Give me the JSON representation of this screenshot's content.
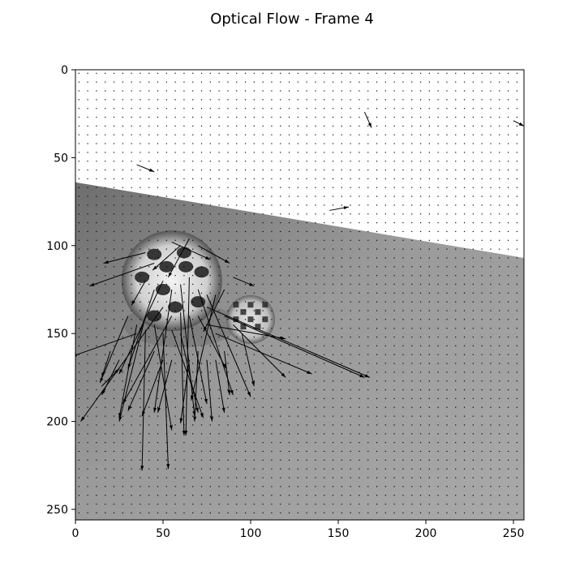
{
  "chart_data": {
    "type": "quiver",
    "title": "Optical Flow - Frame 4",
    "xlabel": "",
    "ylabel": "",
    "xlim": [
      0,
      256
    ],
    "ylim": [
      256,
      0
    ],
    "y_inverted": true,
    "grid": false,
    "x_ticks": [
      0,
      50,
      100,
      150,
      200,
      250
    ],
    "y_ticks": [
      0,
      50,
      100,
      150,
      200,
      250
    ],
    "x_tick_labels": [
      "0",
      "50",
      "100",
      "150",
      "200",
      "250"
    ],
    "y_tick_labels": [
      "0",
      "50",
      "100",
      "150",
      "200",
      "250"
    ],
    "background": {
      "description": "grayscale video frame: bright upper region, gray floor below a diagonal edge, checkered balls near the left-center",
      "edge_line": [
        [
          0,
          64
        ],
        [
          256,
          107
        ]
      ]
    },
    "sample_grid_step": 5,
    "arrow_color": "#000000",
    "vectors": [
      {
        "x": 35,
        "y": 54,
        "u": 10,
        "v": 4
      },
      {
        "x": 165,
        "y": 24,
        "u": 4,
        "v": 9
      },
      {
        "x": 250,
        "y": 29,
        "u": 6,
        "v": 3
      },
      {
        "x": 145,
        "y": 80,
        "u": 11,
        "v": -2
      },
      {
        "x": 40,
        "y": 104,
        "u": -24,
        "v": 6
      },
      {
        "x": 45,
        "y": 110,
        "u": -37,
        "v": 13
      },
      {
        "x": 60,
        "y": 100,
        "u": -16,
        "v": 14
      },
      {
        "x": 55,
        "y": 98,
        "u": 22,
        "v": 10
      },
      {
        "x": 65,
        "y": 96,
        "u": -12,
        "v": 22
      },
      {
        "x": 70,
        "y": 100,
        "u": 18,
        "v": 10
      },
      {
        "x": 40,
        "y": 120,
        "u": -8,
        "v": 14
      },
      {
        "x": 45,
        "y": 125,
        "u": -15,
        "v": 45
      },
      {
        "x": 50,
        "y": 120,
        "u": -25,
        "v": 53
      },
      {
        "x": 55,
        "y": 125,
        "u": -10,
        "v": 70
      },
      {
        "x": 60,
        "y": 122,
        "u": 8,
        "v": 75
      },
      {
        "x": 65,
        "y": 118,
        "u": -2,
        "v": 90
      },
      {
        "x": 70,
        "y": 125,
        "u": 20,
        "v": 60
      },
      {
        "x": 75,
        "y": 128,
        "u": 25,
        "v": 58
      },
      {
        "x": 80,
        "y": 128,
        "u": -14,
        "v": 60
      },
      {
        "x": 50,
        "y": 135,
        "u": -47,
        "v": 65
      },
      {
        "x": 55,
        "y": 140,
        "u": -28,
        "v": 50
      },
      {
        "x": 60,
        "y": 138,
        "u": 2,
        "v": 70
      },
      {
        "x": 65,
        "y": 140,
        "u": 10,
        "v": 50
      },
      {
        "x": 70,
        "y": 140,
        "u": 16,
        "v": 30
      },
      {
        "x": 35,
        "y": 150,
        "u": -37,
        "v": 13
      },
      {
        "x": 40,
        "y": 140,
        "u": -15,
        "v": 60
      },
      {
        "x": 40,
        "y": 148,
        "u": -2,
        "v": 80
      },
      {
        "x": 45,
        "y": 145,
        "u": 10,
        "v": 60
      },
      {
        "x": 50,
        "y": 150,
        "u": 3,
        "v": 77
      },
      {
        "x": 55,
        "y": 148,
        "u": 18,
        "v": 50
      },
      {
        "x": 60,
        "y": 150,
        "u": 10,
        "v": 45
      },
      {
        "x": 75,
        "y": 145,
        "u": 45,
        "v": 8
      },
      {
        "x": 80,
        "y": 150,
        "u": 55,
        "v": 23
      },
      {
        "x": 85,
        "y": 140,
        "u": 80,
        "v": 35
      },
      {
        "x": 75,
        "y": 135,
        "u": 93,
        "v": 40
      },
      {
        "x": 90,
        "y": 145,
        "u": 30,
        "v": 30
      },
      {
        "x": 95,
        "y": 150,
        "u": 7,
        "v": 30
      },
      {
        "x": 90,
        "y": 118,
        "u": 12,
        "v": 5
      },
      {
        "x": 85,
        "y": 125,
        "u": -12,
        "v": 24
      },
      {
        "x": 30,
        "y": 140,
        "u": -16,
        "v": 38
      },
      {
        "x": 35,
        "y": 145,
        "u": -10,
        "v": 53
      },
      {
        "x": 45,
        "y": 160,
        "u": -15,
        "v": 34
      },
      {
        "x": 50,
        "y": 165,
        "u": -12,
        "v": 32
      },
      {
        "x": 55,
        "y": 165,
        "u": -8,
        "v": 30
      },
      {
        "x": 65,
        "y": 165,
        "u": -5,
        "v": 36
      },
      {
        "x": 70,
        "y": 160,
        "u": -2,
        "v": 40
      },
      {
        "x": 75,
        "y": 165,
        "u": 3,
        "v": 35
      },
      {
        "x": 80,
        "y": 165,
        "u": 5,
        "v": 30
      },
      {
        "x": 85,
        "y": 160,
        "u": 3,
        "v": 25
      },
      {
        "x": 25,
        "y": 165,
        "u": -10,
        "v": 20
      },
      {
        "x": 20,
        "y": 160,
        "u": -5,
        "v": 15
      },
      {
        "x": 15,
        "y": 180,
        "u": 10,
        "v": -10
      }
    ]
  }
}
